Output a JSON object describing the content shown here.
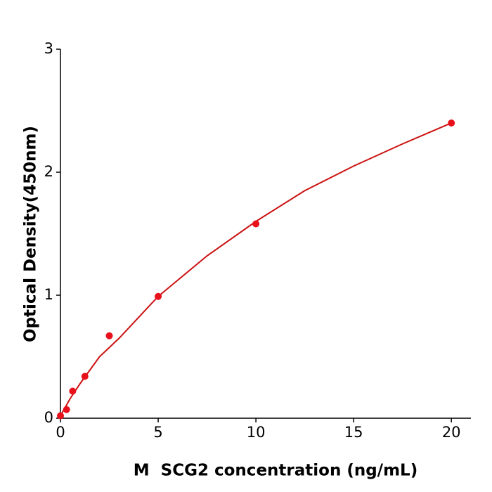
{
  "chart_data": {
    "type": "scatter",
    "x_label": "M  SCG2 concentration (ng/mL)",
    "y_label": "Optical Density(450nm)",
    "x": [
      0,
      0.3125,
      0.625,
      1.25,
      2.5,
      5,
      10,
      20
    ],
    "values": [
      0.02,
      0.07,
      0.22,
      0.34,
      0.67,
      0.99,
      1.58,
      2.4
    ],
    "color": "#e8101a",
    "curve": {
      "color": "#cc1111",
      "x": [
        0,
        0.5,
        1,
        2,
        3,
        5,
        7.5,
        10,
        12.5,
        15,
        17.5,
        20
      ],
      "values": [
        0.02,
        0.16,
        0.28,
        0.5,
        0.65,
        0.99,
        1.32,
        1.6,
        1.85,
        2.05,
        2.23,
        2.4
      ]
    },
    "xlim": [
      0,
      21
    ],
    "xticks": [
      0,
      5,
      10,
      15,
      20
    ],
    "ylim": [
      0,
      3
    ],
    "yticks": [
      0,
      1,
      2,
      3
    ]
  }
}
